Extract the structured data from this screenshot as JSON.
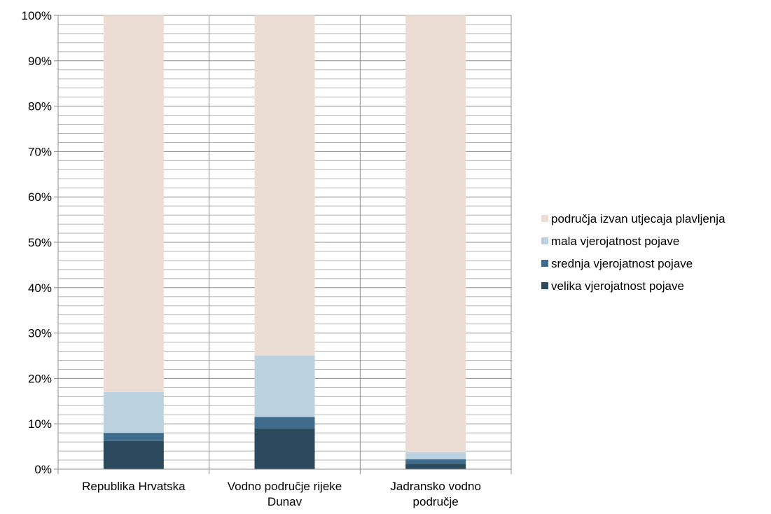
{
  "chart_data": {
    "type": "bar",
    "stacked": true,
    "percent": true,
    "categories": [
      [
        "Republika Hrvatska"
      ],
      [
        "Vodno područje rijeke",
        "Dunav"
      ],
      [
        "Jadransko vodno",
        "područje"
      ]
    ],
    "series": [
      {
        "name": "velika vjerojatnost pojave",
        "color": "#2b4a5e",
        "values": [
          6.2,
          9.0,
          1.2
        ]
      },
      {
        "name": "srednja vjerojatnost pojave",
        "color": "#3f6c8c",
        "values": [
          1.8,
          2.5,
          1.0
        ]
      },
      {
        "name": "mala vjerojatnost pojave",
        "color": "#bcd1df",
        "values": [
          9.0,
          13.5,
          1.5
        ]
      },
      {
        "name": "područja izvan utjecaja plavljenja",
        "color": "#ecddd4",
        "values": [
          83.0,
          75.0,
          96.3
        ]
      }
    ],
    "ylim": [
      0,
      100
    ],
    "y_ticks": [
      "0%",
      "10%",
      "20%",
      "30%",
      "40%",
      "50%",
      "60%",
      "70%",
      "80%",
      "90%",
      "100%"
    ],
    "minor_gridlines_per_major": 5,
    "grid": true,
    "legend_position": "right",
    "title": "",
    "xlabel": "",
    "ylabel": ""
  }
}
